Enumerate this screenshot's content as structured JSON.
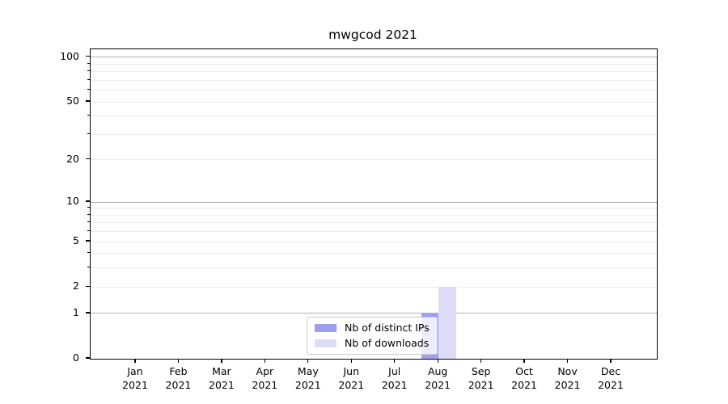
{
  "chart_data": {
    "type": "bar",
    "title": "mwgcod 2021",
    "xlabel": "",
    "ylabel": "",
    "categories": [
      {
        "month": "Jan",
        "year": "2021"
      },
      {
        "month": "Feb",
        "year": "2021"
      },
      {
        "month": "Mar",
        "year": "2021"
      },
      {
        "month": "Apr",
        "year": "2021"
      },
      {
        "month": "May",
        "year": "2021"
      },
      {
        "month": "Jun",
        "year": "2021"
      },
      {
        "month": "Jul",
        "year": "2021"
      },
      {
        "month": "Aug",
        "year": "2021"
      },
      {
        "month": "Sep",
        "year": "2021"
      },
      {
        "month": "Oct",
        "year": "2021"
      },
      {
        "month": "Nov",
        "year": "2021"
      },
      {
        "month": "Dec",
        "year": "2021"
      }
    ],
    "series": [
      {
        "name": "Nb of distinct IPs",
        "color": "#9f9ff0",
        "values": [
          0,
          0,
          0,
          0,
          0,
          0,
          0,
          1,
          0,
          0,
          0,
          0
        ]
      },
      {
        "name": "Nb of downloads",
        "color": "#ddddf8",
        "values": [
          0,
          0,
          0,
          0,
          0,
          0,
          0,
          2,
          0,
          0,
          0,
          0
        ]
      }
    ],
    "yscale": "log1p",
    "ylim": [
      0,
      113
    ],
    "y_tick_labels": [
      0,
      1,
      2,
      5,
      10,
      20,
      50,
      100
    ],
    "y_major_gridlines": [
      1,
      10,
      100
    ],
    "y_minor_gridlines": [
      2,
      3,
      4,
      5,
      6,
      7,
      8,
      9,
      20,
      30,
      40,
      50,
      60,
      70,
      80,
      90
    ],
    "grid": true,
    "legend_position": "lower center",
    "bar_layout": "grouped"
  },
  "colors": {
    "major_grid": "#b1b1b1",
    "minor_grid": "#ececec",
    "spine": "#000000",
    "text": "#000000",
    "legend_border": "#cccccc",
    "legend_bg": "rgba(255,255,255,0.8)",
    "background": "#ffffff"
  }
}
